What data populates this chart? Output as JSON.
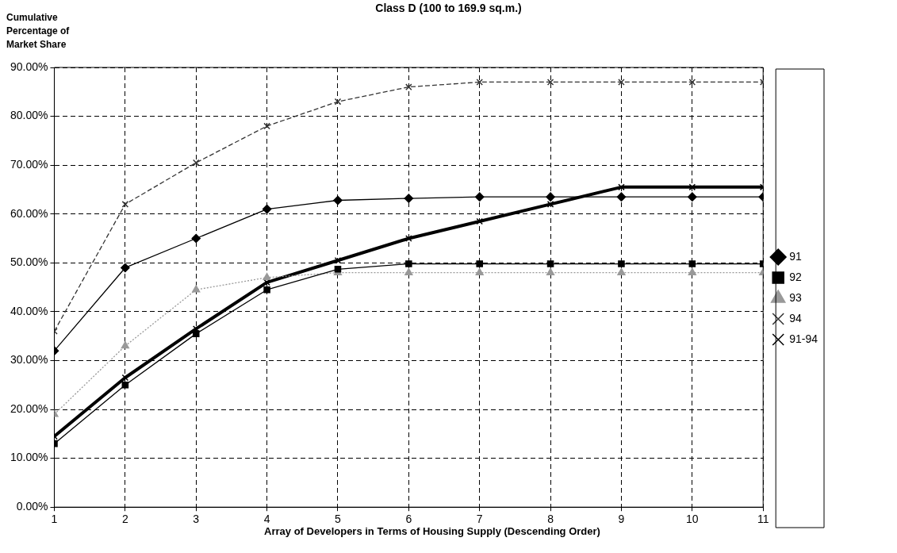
{
  "chart_data": {
    "type": "line",
    "title": "Class D (100 to 169.9 sq.m.)",
    "ylabel": "Cumulative Percentage of Market Share",
    "xlabel": "Array of Developers in Terms of Housing Supply (Descending Order)",
    "x": [
      1,
      2,
      3,
      4,
      5,
      6,
      7,
      8,
      9,
      10,
      11
    ],
    "series": [
      {
        "name": "91",
        "color": "#000000",
        "marker": "diamond",
        "line_style": "solid",
        "values": [
          32,
          49,
          55,
          61,
          62.8,
          63.2,
          63.5,
          63.5,
          63.5,
          63.5,
          63.5
        ]
      },
      {
        "name": "92",
        "color": "#000000",
        "marker": "square",
        "line_style": "solid",
        "values": [
          13,
          25,
          35.5,
          44.5,
          48.7,
          49.8,
          49.8,
          49.8,
          49.8,
          49.8,
          49.8
        ]
      },
      {
        "name": "93",
        "color": "#999999",
        "marker": "triangle",
        "line_style": "dotted",
        "values": [
          19,
          33,
          44.5,
          47,
          48,
          48,
          48,
          48,
          48,
          48,
          48
        ]
      },
      {
        "name": "94",
        "color": "#333333",
        "marker": "cross",
        "line_style": "dashed",
        "values": [
          36,
          62,
          70.5,
          78,
          83,
          86,
          87,
          87,
          87,
          87,
          87
        ]
      },
      {
        "name": "91-94",
        "color": "#000000",
        "marker": "cross",
        "line_style": "solid",
        "values": [
          14.5,
          26.5,
          36.5,
          46,
          50.5,
          55,
          58.5,
          62,
          65.5,
          65.5,
          65.5
        ]
      }
    ],
    "xlim": [
      1,
      11
    ],
    "xticks": [
      1,
      2,
      3,
      4,
      5,
      6,
      7,
      8,
      9,
      10,
      11
    ],
    "ylim": [
      0,
      90
    ],
    "yticks": [
      {
        "value": 0,
        "label": "0.00%"
      },
      {
        "value": 10,
        "label": "10.00%"
      },
      {
        "value": 20,
        "label": "20.00%"
      },
      {
        "value": 30,
        "label": "30.00%"
      },
      {
        "value": 40,
        "label": "40.00%"
      },
      {
        "value": 50,
        "label": "50.00%"
      },
      {
        "value": 60,
        "label": "60.00%"
      },
      {
        "value": 70,
        "label": "70.00%"
      },
      {
        "value": 80,
        "label": "80.00%"
      },
      {
        "value": 90,
        "label": "90.00%"
      }
    ],
    "grid": true,
    "legend": "right"
  }
}
